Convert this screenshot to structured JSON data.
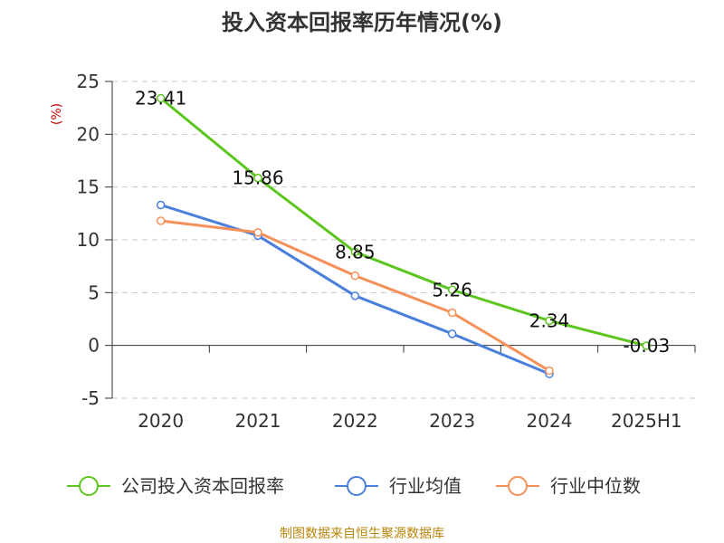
{
  "chart_data": {
    "type": "line",
    "title": "投入资本回报率历年情况(%)",
    "ylabel": "(%)",
    "categories": [
      "2020",
      "2021",
      "2022",
      "2023",
      "2024",
      "2025H1"
    ],
    "ylim": [
      -5,
      25
    ],
    "yticks": [
      25,
      20,
      15,
      10,
      5,
      0,
      -5
    ],
    "grid": true,
    "legend_position": "bottom",
    "series": [
      {
        "name": "公司投入资本回报率",
        "color": "#5cc61f",
        "values": [
          23.41,
          15.86,
          8.85,
          5.26,
          2.34,
          -0.03
        ],
        "labels": [
          "23.41",
          "15.86",
          "8.85",
          "5.26",
          "2.34",
          "-0.03"
        ]
      },
      {
        "name": "行业均值",
        "color": "#4a7fdc",
        "values": [
          13.3,
          10.4,
          4.7,
          1.1,
          -2.7,
          null
        ]
      },
      {
        "name": "行业中位数",
        "color": "#f5905a",
        "values": [
          11.8,
          10.7,
          6.6,
          3.1,
          -2.4,
          null
        ]
      }
    ]
  },
  "source_text": "制图数据来自恒生聚源数据库"
}
